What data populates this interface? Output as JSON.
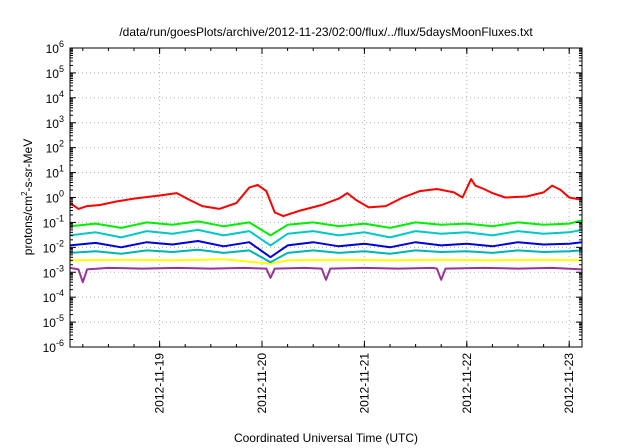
{
  "chart_data": {
    "type": "line",
    "title": "/data/run/goesPlots/archive/2012-11-23/02:00/flux/../flux/5daysMoonFluxes.txt",
    "xlabel": "Coordinated Universal Time (UTC)",
    "ylabel_parts": [
      "protons/cm",
      "2",
      "-s-sr-MeV"
    ],
    "y_scale": "log",
    "ylim": [
      1e-06,
      1000000.0
    ],
    "y_ticks": [
      {
        "value": 1e-06,
        "base": "10",
        "exp": "-6"
      },
      {
        "value": 1e-05,
        "base": "10",
        "exp": "-5"
      },
      {
        "value": 0.0001,
        "base": "10",
        "exp": "-4"
      },
      {
        "value": 0.001,
        "base": "10",
        "exp": "-3"
      },
      {
        "value": 0.01,
        "base": "10",
        "exp": "-2"
      },
      {
        "value": 0.1,
        "base": "10",
        "exp": "-1"
      },
      {
        "value": 1,
        "base": "10",
        "exp": "0"
      },
      {
        "value": 10,
        "base": "10",
        "exp": "1"
      },
      {
        "value": 100,
        "base": "10",
        "exp": "2"
      },
      {
        "value": 1000,
        "base": "10",
        "exp": "3"
      },
      {
        "value": 10000,
        "base": "10",
        "exp": "4"
      },
      {
        "value": 100000,
        "base": "10",
        "exp": "5"
      },
      {
        "value": 1000000,
        "base": "10",
        "exp": "6"
      }
    ],
    "x_range": [
      "2012-11-18T03:00",
      "2012-11-23T03:00"
    ],
    "x_ticks": [
      "2012-11-19",
      "2012-11-20",
      "2012-11-21",
      "2012-11-22",
      "2012-11-23"
    ],
    "grid": true,
    "series": [
      {
        "color": "#ff0000",
        "values": [
          [
            "2012-11-18T03:00",
            0.6
          ],
          [
            "2012-11-18T05:00",
            0.35
          ],
          [
            "2012-11-18T07:00",
            0.45
          ],
          [
            "2012-11-18T10:00",
            0.5
          ],
          [
            "2012-11-18T14:00",
            0.7
          ],
          [
            "2012-11-18T18:00",
            0.9
          ],
          [
            "2012-11-19T00:00",
            1.2
          ],
          [
            "2012-11-19T04:00",
            1.5
          ],
          [
            "2012-11-19T07:00",
            0.8
          ],
          [
            "2012-11-19T10:00",
            0.45
          ],
          [
            "2012-11-19T14:00",
            0.35
          ],
          [
            "2012-11-19T18:00",
            0.6
          ],
          [
            "2012-11-19T21:00",
            2.5
          ],
          [
            "2012-11-19T23:00",
            3.2
          ],
          [
            "2012-11-20T01:00",
            1.8
          ],
          [
            "2012-11-20T03:00",
            0.25
          ],
          [
            "2012-11-20T05:00",
            0.18
          ],
          [
            "2012-11-20T09:00",
            0.3
          ],
          [
            "2012-11-20T14:00",
            0.5
          ],
          [
            "2012-11-20T18:00",
            0.9
          ],
          [
            "2012-11-20T20:00",
            1.5
          ],
          [
            "2012-11-20T22:00",
            0.8
          ],
          [
            "2012-11-21T01:00",
            0.4
          ],
          [
            "2012-11-21T05:00",
            0.45
          ],
          [
            "2012-11-21T09:00",
            1.0
          ],
          [
            "2012-11-21T13:00",
            1.8
          ],
          [
            "2012-11-21T17:00",
            2.2
          ],
          [
            "2012-11-21T21:00",
            1.6
          ],
          [
            "2012-11-21T23:00",
            1.0
          ],
          [
            "2012-11-22T01:00",
            5.5
          ],
          [
            "2012-11-22T02:00",
            3.0
          ],
          [
            "2012-11-22T04:00",
            2.2
          ],
          [
            "2012-11-22T06:00",
            1.5
          ],
          [
            "2012-11-22T09:00",
            1.0
          ],
          [
            "2012-11-22T14:00",
            1.1
          ],
          [
            "2012-11-22T18:00",
            1.6
          ],
          [
            "2012-11-22T20:00",
            3.0
          ],
          [
            "2012-11-22T22:00",
            2.0
          ],
          [
            "2012-11-23T00:00",
            1.0
          ],
          [
            "2012-11-23T03:00",
            0.8
          ]
        ]
      },
      {
        "color": "#00ee00",
        "values": [
          [
            "2012-11-18T03:00",
            0.07
          ],
          [
            "2012-11-18T09:00",
            0.09
          ],
          [
            "2012-11-18T15:00",
            0.06
          ],
          [
            "2012-11-18T21:00",
            0.1
          ],
          [
            "2012-11-19T03:00",
            0.08
          ],
          [
            "2012-11-19T09:00",
            0.11
          ],
          [
            "2012-11-19T15:00",
            0.07
          ],
          [
            "2012-11-19T21:00",
            0.1
          ],
          [
            "2012-11-20T02:00",
            0.03
          ],
          [
            "2012-11-20T06:00",
            0.08
          ],
          [
            "2012-11-20T12:00",
            0.1
          ],
          [
            "2012-11-20T18:00",
            0.07
          ],
          [
            "2012-11-21T00:00",
            0.09
          ],
          [
            "2012-11-21T06:00",
            0.06
          ],
          [
            "2012-11-21T12:00",
            0.1
          ],
          [
            "2012-11-21T18:00",
            0.08
          ],
          [
            "2012-11-22T00:00",
            0.09
          ],
          [
            "2012-11-22T06:00",
            0.07
          ],
          [
            "2012-11-22T12:00",
            0.1
          ],
          [
            "2012-11-22T18:00",
            0.08
          ],
          [
            "2012-11-23T00:00",
            0.09
          ],
          [
            "2012-11-23T03:00",
            0.12
          ]
        ]
      },
      {
        "color": "#00c8c8",
        "values": [
          [
            "2012-11-18T03:00",
            0.03
          ],
          [
            "2012-11-18T09:00",
            0.04
          ],
          [
            "2012-11-18T15:00",
            0.025
          ],
          [
            "2012-11-18T21:00",
            0.045
          ],
          [
            "2012-11-19T03:00",
            0.035
          ],
          [
            "2012-11-19T09:00",
            0.05
          ],
          [
            "2012-11-19T15:00",
            0.03
          ],
          [
            "2012-11-19T21:00",
            0.045
          ],
          [
            "2012-11-20T02:00",
            0.012
          ],
          [
            "2012-11-20T06:00",
            0.035
          ],
          [
            "2012-11-20T12:00",
            0.045
          ],
          [
            "2012-11-20T18:00",
            0.03
          ],
          [
            "2012-11-21T00:00",
            0.04
          ],
          [
            "2012-11-21T06:00",
            0.025
          ],
          [
            "2012-11-21T12:00",
            0.045
          ],
          [
            "2012-11-21T18:00",
            0.035
          ],
          [
            "2012-11-22T00:00",
            0.04
          ],
          [
            "2012-11-22T06:00",
            0.03
          ],
          [
            "2012-11-22T12:00",
            0.045
          ],
          [
            "2012-11-22T18:00",
            0.035
          ],
          [
            "2012-11-23T00:00",
            0.04
          ],
          [
            "2012-11-23T03:00",
            0.05
          ]
        ]
      },
      {
        "color": "#0000dd",
        "values": [
          [
            "2012-11-18T03:00",
            0.012
          ],
          [
            "2012-11-18T09:00",
            0.015
          ],
          [
            "2012-11-18T15:00",
            0.01
          ],
          [
            "2012-11-18T21:00",
            0.016
          ],
          [
            "2012-11-19T03:00",
            0.013
          ],
          [
            "2012-11-19T09:00",
            0.018
          ],
          [
            "2012-11-19T15:00",
            0.011
          ],
          [
            "2012-11-19T21:00",
            0.016
          ],
          [
            "2012-11-20T02:00",
            0.004
          ],
          [
            "2012-11-20T06:00",
            0.012
          ],
          [
            "2012-11-20T12:00",
            0.016
          ],
          [
            "2012-11-20T18:00",
            0.011
          ],
          [
            "2012-11-21T00:00",
            0.014
          ],
          [
            "2012-11-21T06:00",
            0.01
          ],
          [
            "2012-11-21T12:00",
            0.016
          ],
          [
            "2012-11-21T18:00",
            0.012
          ],
          [
            "2012-11-22T00:00",
            0.014
          ],
          [
            "2012-11-22T06:00",
            0.011
          ],
          [
            "2012-11-22T12:00",
            0.016
          ],
          [
            "2012-11-22T18:00",
            0.013
          ],
          [
            "2012-11-23T00:00",
            0.014
          ],
          [
            "2012-11-23T03:00",
            0.016
          ]
        ]
      },
      {
        "color": "#00b4b4",
        "values": [
          [
            "2012-11-18T03:00",
            0.006
          ],
          [
            "2012-11-18T09:00",
            0.007
          ],
          [
            "2012-11-18T15:00",
            0.0055
          ],
          [
            "2012-11-18T21:00",
            0.0075
          ],
          [
            "2012-11-19T03:00",
            0.0065
          ],
          [
            "2012-11-19T09:00",
            0.008
          ],
          [
            "2012-11-19T15:00",
            0.006
          ],
          [
            "2012-11-19T21:00",
            0.0075
          ],
          [
            "2012-11-20T02:00",
            0.0025
          ],
          [
            "2012-11-20T06:00",
            0.006
          ],
          [
            "2012-11-20T12:00",
            0.0075
          ],
          [
            "2012-11-20T18:00",
            0.006
          ],
          [
            "2012-11-21T00:00",
            0.007
          ],
          [
            "2012-11-21T06:00",
            0.0055
          ],
          [
            "2012-11-21T12:00",
            0.0075
          ],
          [
            "2012-11-21T18:00",
            0.0065
          ],
          [
            "2012-11-22T00:00",
            0.007
          ],
          [
            "2012-11-22T06:00",
            0.006
          ],
          [
            "2012-11-22T12:00",
            0.0075
          ],
          [
            "2012-11-22T18:00",
            0.0065
          ],
          [
            "2012-11-23T00:00",
            0.007
          ],
          [
            "2012-11-23T03:00",
            0.0075
          ]
        ]
      },
      {
        "color": "#ffff00",
        "values": [
          [
            "2012-11-18T03:00",
            0.003
          ],
          [
            "2012-11-18T15:00",
            0.0032
          ],
          [
            "2012-11-19T03:00",
            0.003
          ],
          [
            "2012-11-19T15:00",
            0.0033
          ],
          [
            "2012-11-20T02:00",
            0.0022
          ],
          [
            "2012-11-20T06:00",
            0.003
          ],
          [
            "2012-11-20T18:00",
            0.0032
          ],
          [
            "2012-11-21T06:00",
            0.003
          ],
          [
            "2012-11-21T18:00",
            0.0032
          ],
          [
            "2012-11-22T06:00",
            0.003
          ],
          [
            "2012-11-22T18:00",
            0.0032
          ],
          [
            "2012-11-23T03:00",
            0.003
          ]
        ]
      },
      {
        "color": "#993399",
        "values": [
          [
            "2012-11-18T03:00",
            0.0015
          ],
          [
            "2012-11-18T05:00",
            0.0013
          ],
          [
            "2012-11-18T06:00",
            0.0004
          ],
          [
            "2012-11-18T07:00",
            0.0013
          ],
          [
            "2012-11-18T12:00",
            0.0015
          ],
          [
            "2012-11-18T20:00",
            0.0014
          ],
          [
            "2012-11-19T04:00",
            0.0015
          ],
          [
            "2012-11-19T12:00",
            0.0014
          ],
          [
            "2012-11-19T20:00",
            0.0015
          ],
          [
            "2012-11-20T01:00",
            0.0014
          ],
          [
            "2012-11-20T02:00",
            0.0006
          ],
          [
            "2012-11-20T03:00",
            0.0014
          ],
          [
            "2012-11-20T10:00",
            0.0015
          ],
          [
            "2012-11-20T14:00",
            0.0014
          ],
          [
            "2012-11-20T15:00",
            0.0005
          ],
          [
            "2012-11-20T16:00",
            0.0014
          ],
          [
            "2012-11-21T00:00",
            0.0015
          ],
          [
            "2012-11-21T08:00",
            0.0014
          ],
          [
            "2012-11-21T16:00",
            0.0015
          ],
          [
            "2012-11-21T17:00",
            0.0014
          ],
          [
            "2012-11-21T18:00",
            0.0005
          ],
          [
            "2012-11-21T19:00",
            0.0014
          ],
          [
            "2012-11-22T04:00",
            0.0015
          ],
          [
            "2012-11-22T12:00",
            0.0014
          ],
          [
            "2012-11-22T20:00",
            0.0015
          ],
          [
            "2012-11-23T03:00",
            0.0013
          ]
        ]
      }
    ]
  }
}
